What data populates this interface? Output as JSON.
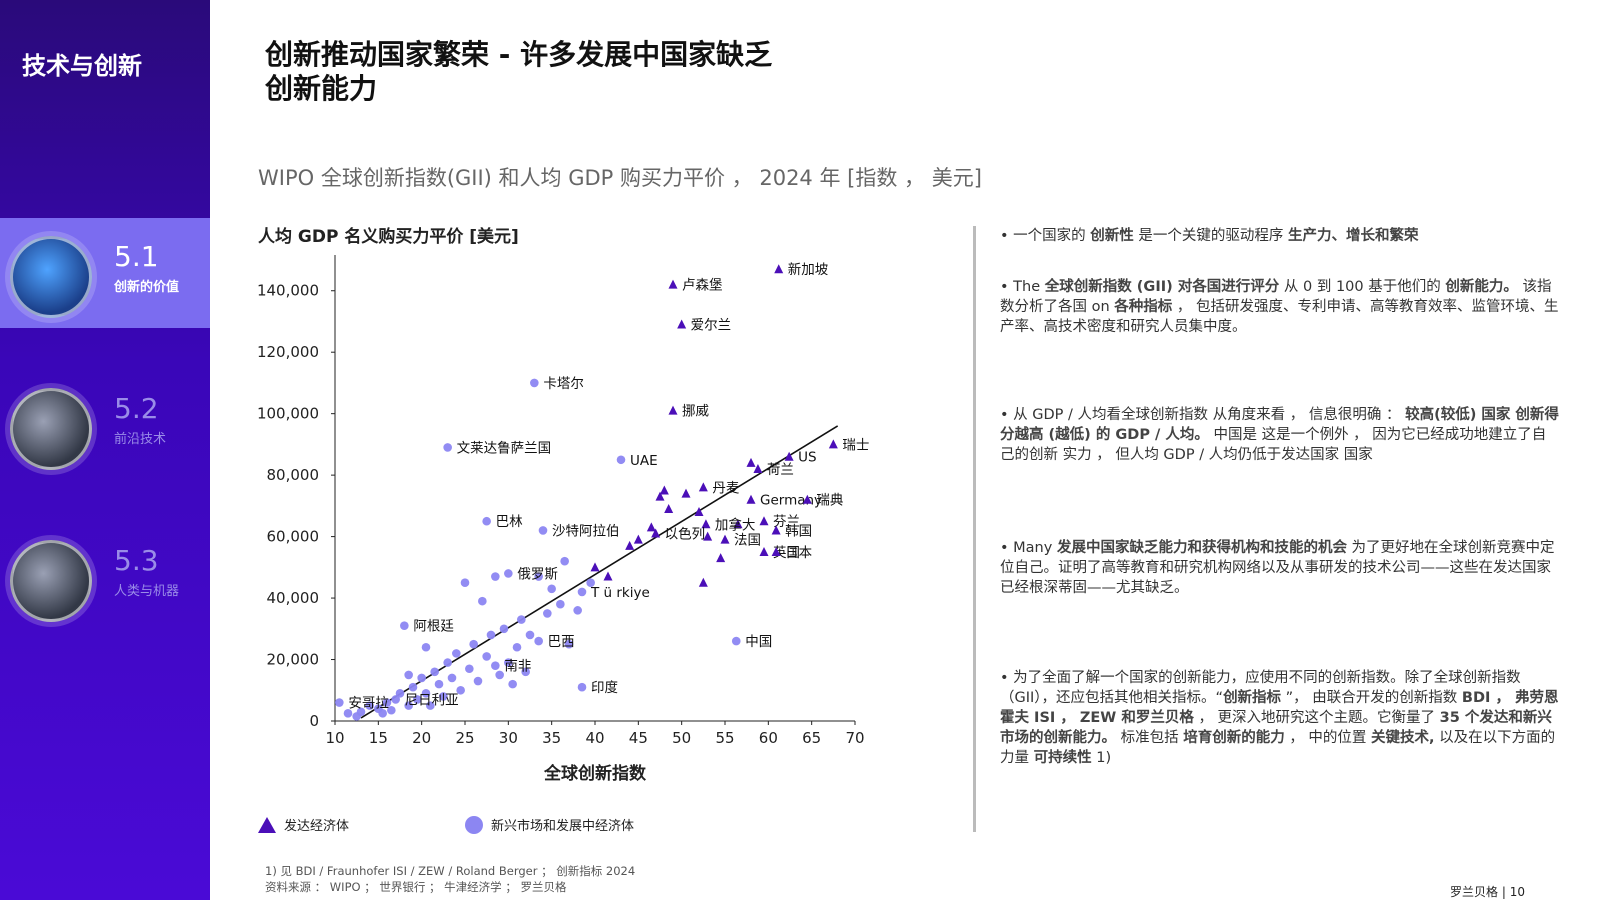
{
  "sidebar": {
    "section_title": "技术与创新",
    "items": [
      {
        "num": "5.1",
        "label": "创新的价值",
        "active": true
      },
      {
        "num": "5.2",
        "label": "前沿技术",
        "active": false
      },
      {
        "num": "5.3",
        "label": "人类与机器",
        "active": false
      }
    ]
  },
  "title": {
    "line1": "创新推动国家繁荣 - 许多发展中国家缺乏",
    "line2": "创新能力"
  },
  "subtitle": "WIPO 全球创新指数(GII) 和人均 GDP 购买力平价 ， 2024 年 [指数 ， 美元]",
  "chart_data": {
    "type": "scatter",
    "ylabel": "人均 GDP 名义购买力平价 [美元]",
    "xlabel": "全球创新指数",
    "xlim": [
      10,
      70
    ],
    "ylim": [
      0,
      150000
    ],
    "xticks": [
      "10",
      "15",
      "20",
      "25",
      "30",
      "35",
      "40",
      "45",
      "50",
      "55",
      "60",
      "65",
      "70"
    ],
    "yticks": [
      "0",
      "20,000",
      "40,000",
      "60,000",
      "80,000",
      "100,000",
      "120,000",
      "140,000"
    ],
    "series": [
      {
        "name": "发达经济体",
        "marker": "triangle",
        "color": "#4b0fb8"
      },
      {
        "name": "新兴市场和发展中经济体",
        "marker": "circle",
        "color": "#8c86f2"
      }
    ],
    "trendline": [
      [
        13,
        1000
      ],
      [
        68,
        96000
      ]
    ],
    "labeled_points": [
      {
        "label": "新加坡",
        "series": 0,
        "x": 61.2,
        "y": 147000
      },
      {
        "label": "卢森堡",
        "series": 0,
        "x": 49.0,
        "y": 142000
      },
      {
        "label": "爱尔兰",
        "series": 0,
        "x": 50.0,
        "y": 129000
      },
      {
        "label": "挪威",
        "series": 0,
        "x": 49.0,
        "y": 101000
      },
      {
        "label": "US",
        "series": 0,
        "x": 62.4,
        "y": 86000
      },
      {
        "label": "瑞士",
        "series": 0,
        "x": 67.5,
        "y": 90000
      },
      {
        "label": "荷兰",
        "series": 0,
        "x": 58.8,
        "y": 82000
      },
      {
        "label": "Germany",
        "series": 0,
        "x": 58.0,
        "y": 72000
      },
      {
        "label": "瑞典",
        "series": 0,
        "x": 64.5,
        "y": 72000
      },
      {
        "label": "芬兰",
        "series": 0,
        "x": 59.5,
        "y": 65000
      },
      {
        "label": "韩国",
        "series": 0,
        "x": 60.9,
        "y": 62000
      },
      {
        "label": "丹麦",
        "series": 0,
        "x": 52.5,
        "y": 76000
      },
      {
        "label": "加拿大",
        "series": 0,
        "x": 52.8,
        "y": 64000
      },
      {
        "label": "以色列",
        "series": 0,
        "x": 47.0,
        "y": 61000
      },
      {
        "label": "法国",
        "series": 0,
        "x": 55.0,
        "y": 59000
      },
      {
        "label": "英国",
        "series": 0,
        "x": 59.5,
        "y": 55000
      },
      {
        "label": "日本",
        "series": 0,
        "x": 60.9,
        "y": 55000
      },
      {
        "label": "卡塔尔",
        "series": 1,
        "x": 33.0,
        "y": 110000
      },
      {
        "label": "文莱达鲁萨兰国",
        "series": 1,
        "x": 23.0,
        "y": 89000
      },
      {
        "label": "UAE",
        "series": 1,
        "x": 43.0,
        "y": 85000
      },
      {
        "label": "巴林",
        "series": 1,
        "x": 27.5,
        "y": 65000
      },
      {
        "label": "沙特阿拉伯",
        "series": 1,
        "x": 34.0,
        "y": 62000
      },
      {
        "label": "俄罗斯",
        "series": 1,
        "x": 30.0,
        "y": 48000
      },
      {
        "label": "T ü rkiye",
        "series": 1,
        "x": 38.5,
        "y": 42000
      },
      {
        "label": "阿根廷",
        "series": 1,
        "x": 18.0,
        "y": 31000
      },
      {
        "label": "巴西",
        "series": 1,
        "x": 33.5,
        "y": 26000
      },
      {
        "label": "安哥拉",
        "series": 1,
        "x": 10.5,
        "y": 6000
      },
      {
        "label": "尼日利亚",
        "series": 1,
        "x": 17.0,
        "y": 7000
      },
      {
        "label": "南非",
        "series": 1,
        "x": 28.5,
        "y": 18000
      },
      {
        "label": "印度",
        "series": 1,
        "x": 38.5,
        "y": 11000
      },
      {
        "label": "中国",
        "series": 1,
        "x": 56.3,
        "y": 26000
      }
    ],
    "unlabeled_points": [
      {
        "series": 0,
        "x": 58.0,
        "y": 84000
      },
      {
        "series": 0,
        "x": 48.0,
        "y": 75000
      },
      {
        "series": 0,
        "x": 47.5,
        "y": 73000
      },
      {
        "series": 0,
        "x": 50.5,
        "y": 74000
      },
      {
        "series": 0,
        "x": 52.0,
        "y": 68000
      },
      {
        "series": 0,
        "x": 56.5,
        "y": 64000
      },
      {
        "series": 0,
        "x": 53.0,
        "y": 60000
      },
      {
        "series": 0,
        "x": 45.0,
        "y": 59000
      },
      {
        "series": 0,
        "x": 44.0,
        "y": 57000
      },
      {
        "series": 0,
        "x": 54.5,
        "y": 53000
      },
      {
        "series": 0,
        "x": 52.5,
        "y": 45000
      },
      {
        "series": 0,
        "x": 40.0,
        "y": 50000
      },
      {
        "series": 0,
        "x": 41.5,
        "y": 47000
      },
      {
        "series": 0,
        "x": 46.5,
        "y": 63000
      },
      {
        "series": 0,
        "x": 48.5,
        "y": 69000
      },
      {
        "series": 1,
        "x": 11.5,
        "y": 2500
      },
      {
        "series": 1,
        "x": 12.5,
        "y": 1500
      },
      {
        "series": 1,
        "x": 13.0,
        "y": 3000
      },
      {
        "series": 1,
        "x": 14.0,
        "y": 5000
      },
      {
        "series": 1,
        "x": 15.0,
        "y": 4000
      },
      {
        "series": 1,
        "x": 15.5,
        "y": 2500
      },
      {
        "series": 1,
        "x": 16.0,
        "y": 6000
      },
      {
        "series": 1,
        "x": 16.5,
        "y": 3500
      },
      {
        "series": 1,
        "x": 17.5,
        "y": 9000
      },
      {
        "series": 1,
        "x": 18.5,
        "y": 5000
      },
      {
        "series": 1,
        "x": 19.0,
        "y": 11000
      },
      {
        "series": 1,
        "x": 19.5,
        "y": 7000
      },
      {
        "series": 1,
        "x": 20.0,
        "y": 14000
      },
      {
        "series": 1,
        "x": 20.5,
        "y": 9000
      },
      {
        "series": 1,
        "x": 21.0,
        "y": 5000
      },
      {
        "series": 1,
        "x": 21.5,
        "y": 16000
      },
      {
        "series": 1,
        "x": 22.0,
        "y": 12000
      },
      {
        "series": 1,
        "x": 22.5,
        "y": 8000
      },
      {
        "series": 1,
        "x": 23.0,
        "y": 19000
      },
      {
        "series": 1,
        "x": 23.5,
        "y": 14000
      },
      {
        "series": 1,
        "x": 24.0,
        "y": 22000
      },
      {
        "series": 1,
        "x": 24.5,
        "y": 10000
      },
      {
        "series": 1,
        "x": 25.0,
        "y": 45000
      },
      {
        "series": 1,
        "x": 25.5,
        "y": 17000
      },
      {
        "series": 1,
        "x": 26.0,
        "y": 25000
      },
      {
        "series": 1,
        "x": 26.5,
        "y": 13000
      },
      {
        "series": 1,
        "x": 27.0,
        "y": 39000
      },
      {
        "series": 1,
        "x": 27.5,
        "y": 21000
      },
      {
        "series": 1,
        "x": 28.0,
        "y": 28000
      },
      {
        "series": 1,
        "x": 28.5,
        "y": 47000
      },
      {
        "series": 1,
        "x": 29.0,
        "y": 15000
      },
      {
        "series": 1,
        "x": 29.5,
        "y": 30000
      },
      {
        "series": 1,
        "x": 30.0,
        "y": 19000
      },
      {
        "series": 1,
        "x": 30.5,
        "y": 12000
      },
      {
        "series": 1,
        "x": 31.0,
        "y": 24000
      },
      {
        "series": 1,
        "x": 31.5,
        "y": 33000
      },
      {
        "series": 1,
        "x": 32.0,
        "y": 16000
      },
      {
        "series": 1,
        "x": 32.5,
        "y": 28000
      },
      {
        "series": 1,
        "x": 33.5,
        "y": 47000
      },
      {
        "series": 1,
        "x": 34.5,
        "y": 35000
      },
      {
        "series": 1,
        "x": 35.0,
        "y": 43000
      },
      {
        "series": 1,
        "x": 36.0,
        "y": 38000
      },
      {
        "series": 1,
        "x": 36.5,
        "y": 52000
      },
      {
        "series": 1,
        "x": 37.0,
        "y": 25000
      },
      {
        "series": 1,
        "x": 38.0,
        "y": 36000
      },
      {
        "series": 1,
        "x": 39.5,
        "y": 45000
      },
      {
        "series": 1,
        "x": 20.5,
        "y": 24000
      },
      {
        "series": 1,
        "x": 18.5,
        "y": 15000
      }
    ]
  },
  "legend": {
    "developed": "发达经济体",
    "emerging": "新兴市场和发展中经济体"
  },
  "bullets": [
    {
      "segments": [
        {
          "t": "• 一个国家的 ",
          "b": false
        },
        {
          "t": "创新性",
          "b": true
        },
        {
          "t": " 是一个关键的驱动程序 ",
          "b": false
        },
        {
          "t": "生产力、增长和繁荣",
          "b": true
        }
      ]
    },
    {
      "segments": [
        {
          "t": "• The ",
          "b": false
        },
        {
          "t": "全球创新指数 (GII) 对各国进行评分",
          "b": true
        },
        {
          "t": " 从 0 到 100 基于他们的 ",
          "b": false
        },
        {
          "t": "创新能力。",
          "b": true
        },
        {
          "t": " 该指数分析了各国 on ",
          "b": false
        },
        {
          "t": "各种指标",
          "b": true
        },
        {
          "t": " ， 包括研发强度、专利申请、高等教育效率、监管环境、生产率、高技术密度和研究人员集中度。",
          "b": false
        }
      ]
    },
    {
      "segments": [
        {
          "t": "• 从 GDP / 人均看全球创新指数 从角度来看 ， 信息很明确 ： ",
          "b": false
        },
        {
          "t": "较高(较低) 国家 创新得分越高 (越低) 的 GDP / 人均。",
          "b": true
        },
        {
          "t": " 中国是 这是一个例外 ， 因为它已经成功地建立了自己的创新 实力 ， 但人均 GDP / 人均仍低于发达国家 国家",
          "b": false
        }
      ]
    },
    {
      "segments": [
        {
          "t": "• Many ",
          "b": false
        },
        {
          "t": "发展中国家缺乏能力和获得机构和技能的机会",
          "b": true
        },
        {
          "t": " 为了更好地在全球创新竞赛中定位自己。证明了高等教育和研究机构网络以及从事研发的技术公司——这些在发达国家已经根深蒂固——尤其缺乏。",
          "b": false
        }
      ]
    },
    {
      "segments": [
        {
          "t": "• 为了全面了解一个国家的创新能力，应使用不同的创新指数。除了全球创新指数（GII），还应包括其他相关指标。“",
          "b": false
        },
        {
          "t": "创新指标",
          "b": true
        },
        {
          "t": " ”， 由联合开发的创新指数 ",
          "b": false
        },
        {
          "t": "BDI ， 弗劳恩霍夫 ISI ， ZEW 和罗兰贝格",
          "b": true
        },
        {
          "t": " ， 更深入地研究这个主题。它衡量了 ",
          "b": false
        },
        {
          "t": "35 个发达和新兴市场的创新能力。",
          "b": true
        },
        {
          "t": " 标准包括 ",
          "b": false
        },
        {
          "t": "培育创新的能力",
          "b": true
        },
        {
          "t": " ， 中的位置 ",
          "b": false
        },
        {
          "t": "关键技术,",
          "b": true
        },
        {
          "t": " 以及在以下方面的力量 ",
          "b": false
        },
        {
          "t": "可持续性",
          "b": true
        },
        {
          "t": " 1)",
          "b": false
        }
      ]
    }
  ],
  "footnote": "1) 见 BDI / Fraunhofer ISI / ZEW / Roland Berger ； 创新指标 2024",
  "source": "资料来源 ： WIPO ； 世界银行 ； 牛津经济学 ； 罗兰贝格",
  "page_number": "罗兰贝格 | 10"
}
